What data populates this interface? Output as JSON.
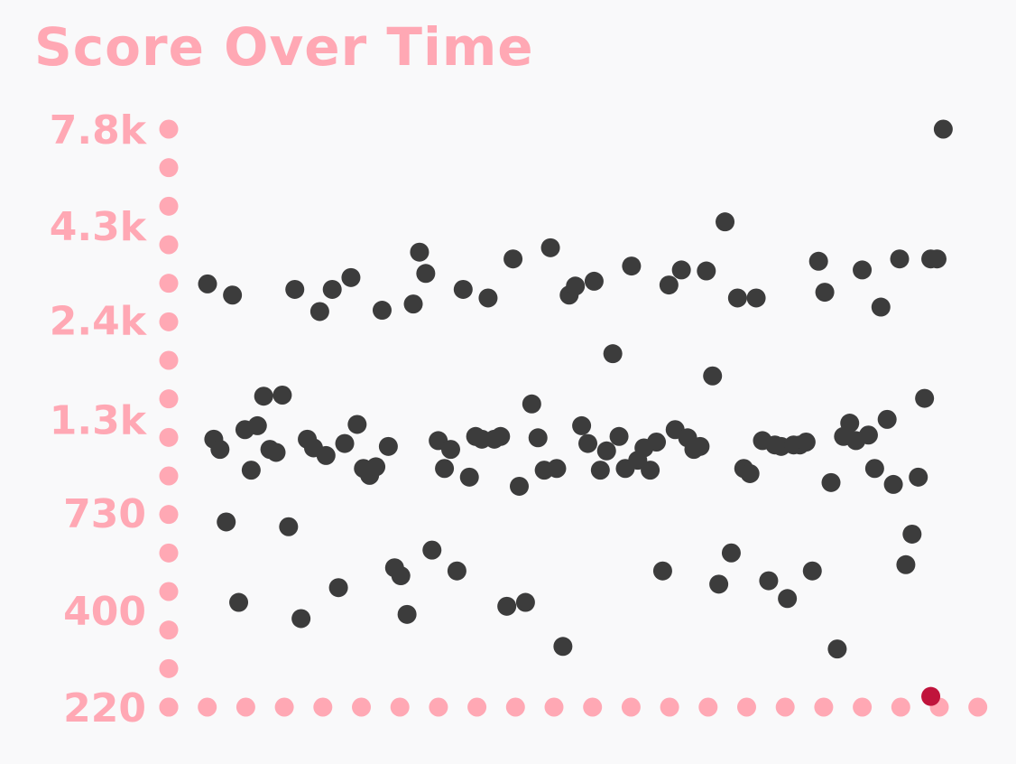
{
  "chart_data": {
    "type": "scatter",
    "title": "Score Over Time",
    "xlabel": "",
    "ylabel": "",
    "y_scale": "log",
    "ylim": [
      220,
      7800
    ],
    "y_ticks": [
      {
        "value": 220,
        "label": "220"
      },
      {
        "value": 400,
        "label": "400"
      },
      {
        "value": 730,
        "label": "730"
      },
      {
        "value": 1300,
        "label": "1.3k"
      },
      {
        "value": 2400,
        "label": "2.4k"
      },
      {
        "value": 4300,
        "label": "4.3k"
      },
      {
        "value": 7800,
        "label": "7.8k"
      }
    ],
    "x_tick_count": 22,
    "y_minor_dots": 16,
    "grid": false,
    "legend": "none",
    "colors": {
      "axis_dots": "#ffa8b4",
      "points": "#3c3c3c",
      "highlight": "#c0143c",
      "title": "#ffa8b4",
      "background": "#f9f9fa"
    },
    "series": [
      {
        "values": [
          [
            1,
            3000
          ],
          [
            2,
            1150
          ],
          [
            3,
            1080
          ],
          [
            4,
            690
          ],
          [
            5,
            2800
          ],
          [
            6,
            420
          ],
          [
            7,
            1220
          ],
          [
            8,
            950
          ],
          [
            9,
            1250
          ],
          [
            10,
            1500
          ],
          [
            11,
            1080
          ],
          [
            12,
            1060
          ],
          [
            13,
            1510
          ],
          [
            14,
            670
          ],
          [
            15,
            2900
          ],
          [
            16,
            380
          ],
          [
            17,
            1150
          ],
          [
            18,
            1090
          ],
          [
            19,
            2530
          ],
          [
            20,
            1040
          ],
          [
            21,
            2900
          ],
          [
            22,
            460
          ],
          [
            23,
            1120
          ],
          [
            24,
            3120
          ],
          [
            25,
            1260
          ],
          [
            26,
            960
          ],
          [
            27,
            920
          ],
          [
            28,
            970
          ],
          [
            29,
            2550
          ],
          [
            30,
            1100
          ],
          [
            31,
            520
          ],
          [
            32,
            495
          ],
          [
            33,
            390
          ],
          [
            34,
            2650
          ],
          [
            35,
            3650
          ],
          [
            36,
            3200
          ],
          [
            37,
            580
          ],
          [
            38,
            1140
          ],
          [
            39,
            960
          ],
          [
            40,
            1080
          ],
          [
            41,
            510
          ],
          [
            42,
            2900
          ],
          [
            43,
            910
          ],
          [
            44,
            1170
          ],
          [
            45,
            1150
          ],
          [
            46,
            2750
          ],
          [
            47,
            1150
          ],
          [
            48,
            1170
          ],
          [
            49,
            410
          ],
          [
            50,
            3500
          ],
          [
            51,
            860
          ],
          [
            52,
            420
          ],
          [
            53,
            1430
          ],
          [
            54,
            1160
          ],
          [
            55,
            950
          ],
          [
            56,
            3750
          ],
          [
            57,
            960
          ],
          [
            58,
            320
          ],
          [
            59,
            2800
          ],
          [
            60,
            2960
          ],
          [
            61,
            1250
          ],
          [
            62,
            1120
          ],
          [
            63,
            3050
          ],
          [
            64,
            950
          ],
          [
            65,
            1070
          ],
          [
            66,
            1950
          ],
          [
            67,
            1170
          ],
          [
            68,
            960
          ],
          [
            69,
            3350
          ],
          [
            70,
            1010
          ],
          [
            71,
            1090
          ],
          [
            72,
            950
          ],
          [
            73,
            1130
          ],
          [
            74,
            510
          ],
          [
            75,
            2980
          ],
          [
            76,
            1220
          ],
          [
            77,
            3270
          ],
          [
            78,
            1160
          ],
          [
            79,
            1080
          ],
          [
            80,
            1100
          ],
          [
            81,
            3250
          ],
          [
            82,
            1700
          ],
          [
            83,
            470
          ],
          [
            84,
            4400
          ],
          [
            85,
            570
          ],
          [
            86,
            2750
          ],
          [
            87,
            960
          ],
          [
            88,
            930
          ],
          [
            89,
            2750
          ],
          [
            90,
            1140
          ],
          [
            91,
            480
          ],
          [
            92,
            1110
          ],
          [
            93,
            1100
          ],
          [
            94,
            430
          ],
          [
            95,
            1110
          ],
          [
            96,
            1110
          ],
          [
            97,
            1130
          ],
          [
            98,
            510
          ],
          [
            99,
            3450
          ],
          [
            100,
            2850
          ],
          [
            101,
            880
          ],
          [
            102,
            315
          ],
          [
            103,
            1170
          ],
          [
            104,
            1270
          ],
          [
            105,
            1140
          ],
          [
            106,
            3270
          ],
          [
            107,
            1180
          ],
          [
            108,
            960
          ],
          [
            109,
            2600
          ],
          [
            110,
            1300
          ],
          [
            111,
            870
          ],
          [
            112,
            3500
          ],
          [
            113,
            530
          ],
          [
            114,
            640
          ],
          [
            115,
            910
          ],
          [
            116,
            1480
          ],
          [
            117,
            3500
          ],
          [
            118,
            3500
          ],
          [
            119,
            7800
          ]
        ]
      },
      {
        "values": [
          [
            117,
            235
          ]
        ]
      }
    ]
  }
}
